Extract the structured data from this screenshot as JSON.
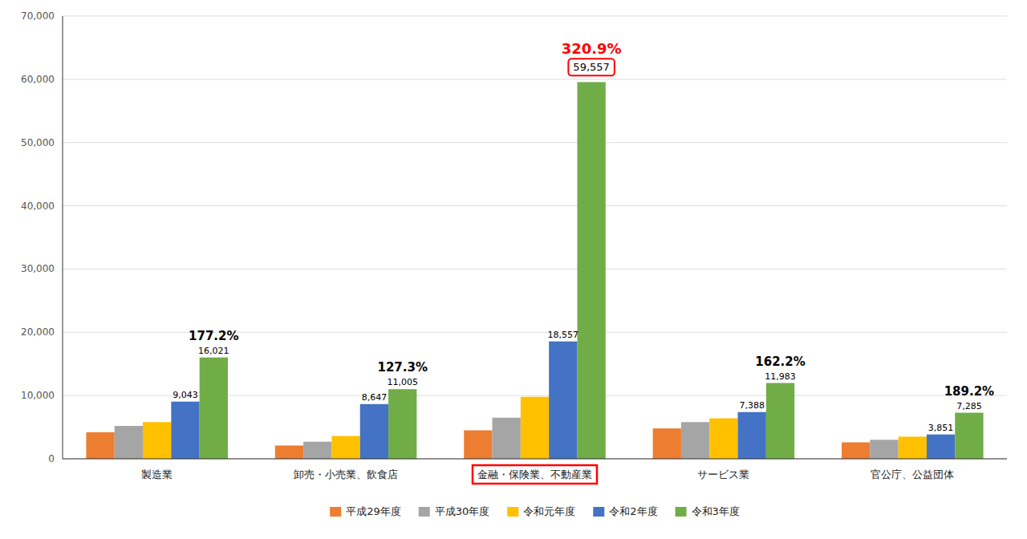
{
  "chart_data": {
    "type": "bar",
    "categories": [
      "製造業",
      "卸売・小売業、飲食店",
      "金融・保険業、不動産業",
      "サービス業",
      "官公庁、公益団体"
    ],
    "series": [
      {
        "name": "平成29年度",
        "color": "#ED7D31",
        "values": [
          4200,
          2100,
          4500,
          4800,
          2600
        ]
      },
      {
        "name": "平成30年度",
        "color": "#A5A5A5",
        "values": [
          5200,
          2700,
          6500,
          5800,
          3000
        ]
      },
      {
        "name": "令和元年度",
        "color": "#FFC000",
        "values": [
          5800,
          3600,
          9800,
          6400,
          3500
        ]
      },
      {
        "name": "令和2年度",
        "color": "#4472C4",
        "values": [
          9043,
          8647,
          18557,
          7388,
          3851
        ],
        "data_labels": true,
        "value_labels": [
          "9,043",
          "8,647",
          "18,557",
          "7,388",
          "3,851"
        ]
      },
      {
        "name": "令和3年度",
        "color": "#70AD47",
        "values": [
          16021,
          11005,
          59557,
          11983,
          7285
        ],
        "data_labels": true,
        "value_labels": [
          "16,021",
          "11,005",
          "59,557",
          "11,983",
          "7,285"
        ]
      }
    ],
    "annotations": [
      {
        "text": "177.2%",
        "category": "製造業",
        "series": "令和3年度"
      },
      {
        "text": "127.3%",
        "category": "卸売・小売業、飲食店",
        "series": "令和3年度"
      },
      {
        "text": "320.9%",
        "category": "金融・保険業、不動産業",
        "series": "令和3年度",
        "color": "red"
      },
      {
        "text": "162.2%",
        "category": "サービス業",
        "series": "令和3年度"
      },
      {
        "text": "189.2%",
        "category": "官公庁、公益団体",
        "series": "令和3年度"
      }
    ],
    "ylim": [
      0,
      70000
    ],
    "yticks": [
      0,
      {
        "value": 10000,
        "label": "10,000"
      },
      {
        "value": 20000,
        "label": "20,000"
      },
      {
        "value": 30000,
        "label": "30,000"
      },
      {
        "value": 40000,
        "label": "40,000"
      },
      {
        "value": 50000,
        "label": "50,000"
      },
      {
        "value": 60000,
        "label": "60,000"
      },
      {
        "value": 70000,
        "label": "70,000"
      }
    ],
    "grid": true,
    "legend": "bottom"
  }
}
